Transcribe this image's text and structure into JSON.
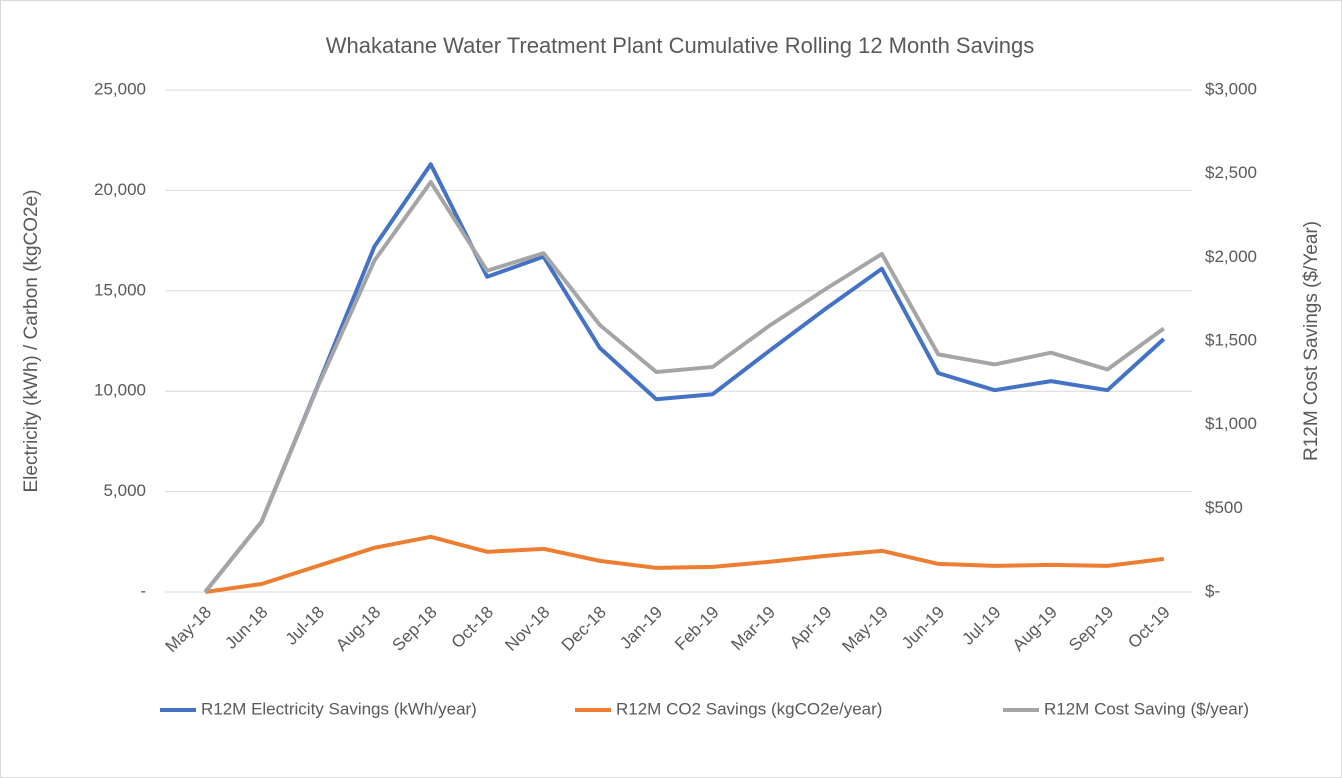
{
  "chart_data": {
    "type": "line",
    "title": "Whakatane Water Treatment Plant Cumulative Rolling 12 Month Savings",
    "y_label": "Electricity (kWh) / Carbon (kgCO2e)",
    "y2_label": "R12M Cost Savings ($/Year)",
    "categories": [
      "May-18",
      "Jun-18",
      "Jul-18",
      "Aug-18",
      "Sep-18",
      "Oct-18",
      "Nov-18",
      "Dec-18",
      "Jan-19",
      "Feb-19",
      "Mar-19",
      "Apr-19",
      "May-19",
      "Jun-19",
      "Jul-19",
      "Aug-19",
      "Sep-19",
      "Oct-19"
    ],
    "series": [
      {
        "name": "R12M Electricity Savings (kWh/year)",
        "color": "#4472c4",
        "values": [
          0,
          3500,
          10300,
          17200,
          21300,
          15700,
          16700,
          12150,
          9600,
          9850,
          12000,
          14100,
          16100,
          10900,
          10050,
          10500,
          10050,
          12600
        ]
      },
      {
        "name": "R12M CO2 Savings (kgCO2e/year)",
        "color": "#ed7d31",
        "values": [
          0,
          400,
          1300,
          2200,
          2750,
          2000,
          2150,
          1550,
          1200,
          1250,
          1500,
          1800,
          2050,
          1400,
          1300,
          1350,
          1300,
          1650
        ]
      },
      {
        "name": "R12M Cost Saving ($/year)",
        "color": "#a5a5a5",
        "axis": "y2",
        "values": [
          0,
          420,
          1230,
          1980,
          2450,
          1920,
          2025,
          1595,
          1315,
          1345,
          1590,
          1810,
          2020,
          1420,
          1360,
          1430,
          1330,
          1575
        ]
      }
    ],
    "ylim": [
      0,
      25000
    ],
    "yticks": [
      {
        "value": 0,
        "label": "-"
      },
      {
        "value": 5000,
        "label": "5,000"
      },
      {
        "value": 10000,
        "label": "10,000"
      },
      {
        "value": 15000,
        "label": "15,000"
      },
      {
        "value": 20000,
        "label": "20,000"
      },
      {
        "value": 25000,
        "label": "25,000"
      }
    ],
    "y2lim": [
      0,
      3000
    ],
    "y2ticks": [
      {
        "value": 0,
        "label": "$-"
      },
      {
        "value": 500,
        "label": "$500"
      },
      {
        "value": 1000,
        "label": "$1,000"
      },
      {
        "value": 1500,
        "label": "$1,500"
      },
      {
        "value": 2000,
        "label": "$2,000"
      },
      {
        "value": 2500,
        "label": "$2,500"
      },
      {
        "value": 3000,
        "label": "$3,000"
      }
    ],
    "grid": true,
    "legend": "bottom"
  }
}
